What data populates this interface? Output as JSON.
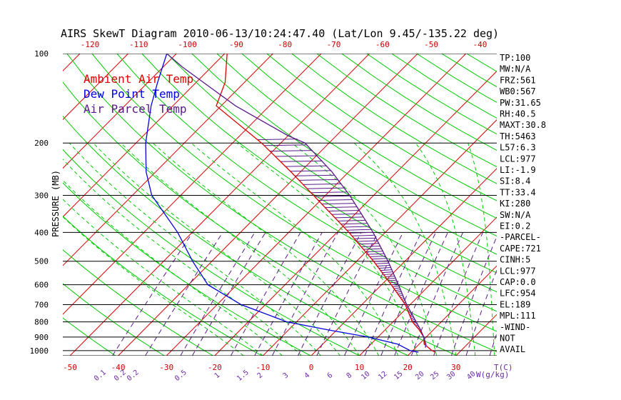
{
  "chart_data": {
    "type": "line",
    "title": "AIRS SkewT Diagram 2010-06-13/10:24:47.40 (Lat/Lon 9.45/-135.22 deg)",
    "ylabel": "PRESSURE (MB)",
    "xlabel": "T(C)",
    "mixing_ratio_label": "W(g/kg)",
    "y_scale": "log",
    "ylim": [
      1000,
      100
    ],
    "xlim": [
      -50,
      40
    ],
    "pressure_ticks": [
      100,
      200,
      300,
      400,
      500,
      600,
      700,
      800,
      900,
      1000
    ],
    "bottom_temp_ticks": [
      -50,
      -40,
      -30,
      -20,
      -10,
      0,
      10,
      20,
      30
    ],
    "top_temp_ticks": [
      -120,
      -110,
      -100,
      -90,
      -80,
      -70,
      -60,
      -50,
      -40
    ],
    "mixing_ratio_ticks": [
      "0.1",
      "0.2",
      "0.2",
      "0.5",
      "1",
      "1.5",
      "2",
      "3",
      "4",
      "6",
      "8",
      "10",
      "12",
      "15",
      "20",
      "25",
      "30",
      "40"
    ],
    "legend": [
      "Ambient Air Temp",
      "Dew Point Temp",
      "Air Parcel Temp"
    ],
    "legend_placement": "top-left",
    "colors": {
      "ambient": "#dd0000",
      "dewpoint": "#0000dd",
      "parcel": "#5a1a8a",
      "isotherm": "#dd0000",
      "dry_adiabat": "#00cc00",
      "moist_adiabat": "#00cc00",
      "mixing_ratio": "#5a1a8a",
      "isobar": "#000000"
    },
    "series": [
      {
        "name": "Ambient Air Temp",
        "points": [
          {
            "p": 1012,
            "t": 25.0
          },
          {
            "p": 1000,
            "t": 24.0
          },
          {
            "p": 975,
            "t": 22.5
          },
          {
            "p": 950,
            "t": 21.0
          },
          {
            "p": 900,
            "t": 19.5
          },
          {
            "p": 850,
            "t": 17.0
          },
          {
            "p": 800,
            "t": 14.0
          },
          {
            "p": 700,
            "t": 9.0
          },
          {
            "p": 600,
            "t": 2.0
          },
          {
            "p": 500,
            "t": -6.5
          },
          {
            "p": 400,
            "t": -17.5
          },
          {
            "p": 300,
            "t": -32.5
          },
          {
            "p": 250,
            "t": -42.0
          },
          {
            "p": 200,
            "t": -54.0
          },
          {
            "p": 150,
            "t": -71.0
          },
          {
            "p": 125,
            "t": -74.0
          },
          {
            "p": 100,
            "t": -79.5
          }
        ]
      },
      {
        "name": "Dew Point Temp",
        "points": [
          {
            "p": 1012,
            "t": 21.5
          },
          {
            "p": 1000,
            "t": 19.5
          },
          {
            "p": 975,
            "t": 17.5
          },
          {
            "p": 950,
            "t": 15.5
          },
          {
            "p": 900,
            "t": 8.0
          },
          {
            "p": 850,
            "t": -2.0
          },
          {
            "p": 800,
            "t": -12.0
          },
          {
            "p": 700,
            "t": -25.0
          },
          {
            "p": 600,
            "t": -36.0
          },
          {
            "p": 500,
            "t": -44.0
          },
          {
            "p": 400,
            "t": -53.0
          },
          {
            "p": 300,
            "t": -66.0
          },
          {
            "p": 250,
            "t": -72.0
          },
          {
            "p": 200,
            "t": -78.0
          },
          {
            "p": 150,
            "t": -84.5
          },
          {
            "p": 125,
            "t": -88.0
          },
          {
            "p": 100,
            "t": -92.0
          }
        ]
      },
      {
        "name": "Air Parcel Temp",
        "points": [
          {
            "p": 977,
            "t": 22.0
          },
          {
            "p": 954,
            "t": 21.5
          },
          {
            "p": 900,
            "t": 19.5
          },
          {
            "p": 850,
            "t": 17.3
          },
          {
            "p": 800,
            "t": 14.8
          },
          {
            "p": 700,
            "t": 9.3
          },
          {
            "p": 600,
            "t": 3.5
          },
          {
            "p": 500,
            "t": -3.5
          },
          {
            "p": 400,
            "t": -12.5
          },
          {
            "p": 300,
            "t": -25.0
          },
          {
            "p": 250,
            "t": -33.5
          },
          {
            "p": 200,
            "t": -45.0
          },
          {
            "p": 189,
            "t": -50.0
          },
          {
            "p": 150,
            "t": -67.0
          },
          {
            "p": 111,
            "t": -86.0
          },
          {
            "p": 100,
            "t": -92.0
          }
        ]
      }
    ]
  },
  "indices": [
    "TP:100",
    "MW:N/A",
    "FRZ:561",
    "WB0:567",
    "PW:31.65",
    "RH:40.5",
    "MAXT:30.8",
    "TH:5463",
    "L57:6.3",
    "LCL:977",
    "LI:-1.9",
    "SI:8.4",
    "TT:33.4",
    "KI:280",
    "SW:N/A",
    "EI:0.2",
    "-PARCEL-",
    "CAPE:721",
    "CINH:5",
    "LCL:977",
    "CAP:0.0",
    "LFC:954",
    "EL:189",
    "MPL:111",
    "-WIND-",
    "NOT",
    "AVAIL"
  ]
}
